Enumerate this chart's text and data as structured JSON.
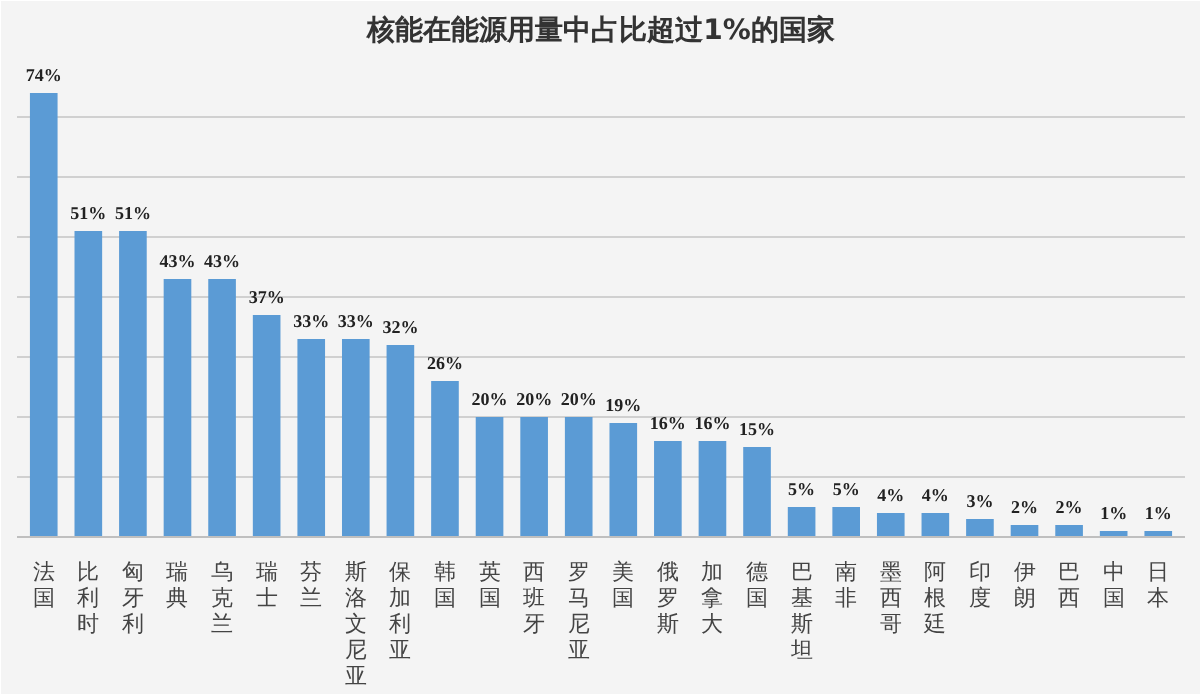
{
  "chart_data": {
    "type": "bar",
    "title": "核能在能源用量中占比超过1%的国家",
    "categories": [
      "法国",
      "比利时",
      "匈牙利",
      "瑞典",
      "乌克兰",
      "瑞士",
      "芬兰",
      "斯洛文尼亚",
      "保加利亚",
      "韩国",
      "英国",
      "西班牙",
      "罗马尼亚",
      "美国",
      "俄罗斯",
      "加拿大",
      "德国",
      "巴基斯坦",
      "南非",
      "墨西哥",
      "阿根廷",
      "印度",
      "伊朗",
      "巴西",
      "中国",
      "日本"
    ],
    "values": [
      74,
      51,
      51,
      43,
      43,
      37,
      33,
      33,
      32,
      26,
      20,
      20,
      20,
      19,
      16,
      16,
      15,
      5,
      5,
      4,
      4,
      3,
      2,
      2,
      1,
      1
    ],
    "value_labels": [
      "74%",
      "51%",
      "51%",
      "43%",
      "43%",
      "37%",
      "33%",
      "33%",
      "32%",
      "26%",
      "20%",
      "20%",
      "20%",
      "19%",
      "16%",
      "16%",
      "15%",
      "5%",
      "5%",
      "4%",
      "4%",
      "3%",
      "2%",
      "2%",
      "1%",
      "1%"
    ],
    "color": "#5b9bd5",
    "ylim": [
      0,
      80
    ],
    "yticks": [
      {
        "value": 0,
        "label": null
      },
      {
        "value": 10,
        "label": null
      },
      {
        "value": 20,
        "label": null
      },
      {
        "value": 30,
        "label": null
      },
      {
        "value": 40,
        "label": null
      },
      {
        "value": 50,
        "label": null
      },
      {
        "value": 60,
        "label": null
      },
      {
        "value": 70,
        "label": null
      },
      {
        "value": 80,
        "label": null
      }
    ],
    "grid": "y",
    "tick_labels": "x"
  }
}
